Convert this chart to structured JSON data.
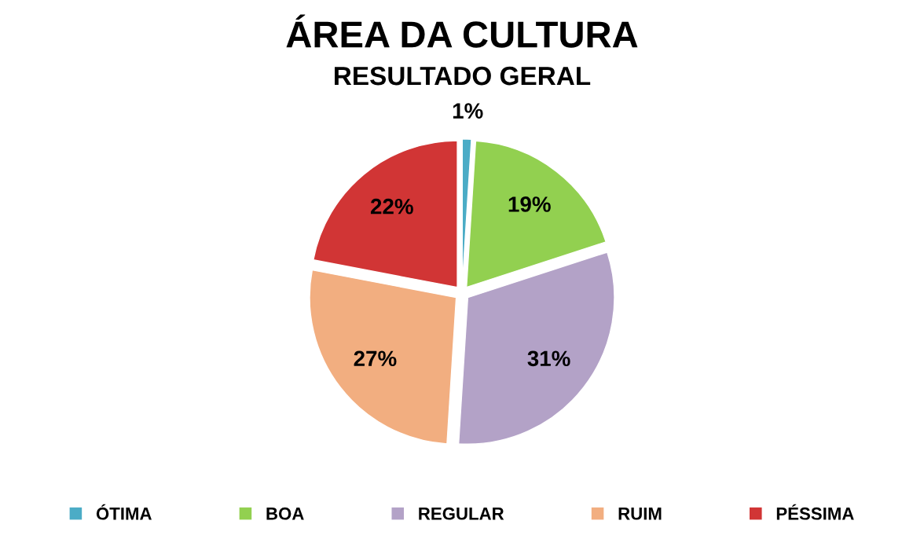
{
  "chart_data": {
    "type": "pie",
    "title": "ÁREA DA CULTURA",
    "subtitle": "RESULTADO GERAL",
    "categories": [
      "ÓTIMA",
      "BOA",
      "REGULAR",
      "RUIM",
      "PÉSSIMA"
    ],
    "values": [
      1,
      19,
      31,
      27,
      22
    ],
    "colors": [
      "#4bacc6",
      "#92d050",
      "#b3a2c7",
      "#f2ae80",
      "#d13535"
    ],
    "value_labels": [
      "1%",
      "19%",
      "31%",
      "27%",
      "22%"
    ],
    "legend": "bottom"
  }
}
